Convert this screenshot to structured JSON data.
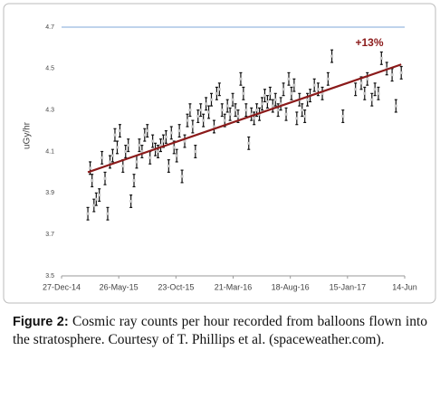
{
  "chart_data": {
    "type": "scatter",
    "ylabel": "uGy/hr",
    "x": [
      "2015-03-06",
      "2015-03-12",
      "2015-03-17",
      "2015-03-22",
      "2015-03-28",
      "2015-04-05",
      "2015-04-12",
      "2015-04-20",
      "2015-04-27",
      "2015-05-03",
      "2015-05-10",
      "2015-05-16",
      "2015-05-22",
      "2015-05-29",
      "2015-06-06",
      "2015-06-13",
      "2015-06-20",
      "2015-06-27",
      "2015-07-05",
      "2015-07-12",
      "2015-07-19",
      "2015-07-26",
      "2015-08-02",
      "2015-08-09",
      "2015-08-16",
      "2015-08-23",
      "2015-08-30",
      "2015-09-06",
      "2015-09-13",
      "2015-09-20",
      "2015-09-27",
      "2015-10-04",
      "2015-10-11",
      "2015-10-18",
      "2015-10-25",
      "2015-11-01",
      "2015-11-08",
      "2015-11-15",
      "2015-11-22",
      "2015-11-29",
      "2015-12-06",
      "2015-12-13",
      "2015-12-20",
      "2015-12-27",
      "2016-01-03",
      "2016-01-10",
      "2016-01-17",
      "2016-01-24",
      "2016-01-31",
      "2016-02-07",
      "2016-02-14",
      "2016-02-21",
      "2016-02-28",
      "2016-03-06",
      "2016-03-13",
      "2016-03-20",
      "2016-03-27",
      "2016-04-03",
      "2016-04-10",
      "2016-04-17",
      "2016-04-24",
      "2016-05-01",
      "2016-05-08",
      "2016-05-15",
      "2016-05-22",
      "2016-05-29",
      "2016-06-05",
      "2016-06-12",
      "2016-06-19",
      "2016-06-26",
      "2016-07-03",
      "2016-07-10",
      "2016-07-17",
      "2016-07-24",
      "2016-07-31",
      "2016-08-07",
      "2016-08-14",
      "2016-08-21",
      "2016-08-28",
      "2016-09-04",
      "2016-09-11",
      "2016-09-18",
      "2016-09-25",
      "2016-10-02",
      "2016-10-09",
      "2016-10-20",
      "2016-10-30",
      "2016-11-10",
      "2016-11-25",
      "2016-12-05",
      "2017-01-03",
      "2017-02-05",
      "2017-02-20",
      "2017-03-01",
      "2017-03-08",
      "2017-03-20",
      "2017-03-28",
      "2017-04-06",
      "2017-04-14",
      "2017-04-28",
      "2017-05-12",
      "2017-05-22",
      "2017-06-05"
    ],
    "values": [
      3.8,
      4.02,
      3.96,
      3.84,
      3.87,
      3.89,
      4.07,
      3.97,
      3.8,
      4.05,
      4.08,
      4.18,
      4.12,
      4.2,
      4.03,
      4.1,
      4.13,
      3.86,
      3.96,
      4.05,
      4.13,
      4.1,
      4.18,
      4.2,
      4.07,
      4.15,
      4.11,
      4.1,
      4.13,
      4.15,
      4.17,
      4.03,
      4.19,
      4.12,
      4.08,
      4.2,
      3.98,
      4.15,
      4.25,
      4.3,
      4.22,
      4.1,
      4.27,
      4.3,
      4.25,
      4.33,
      4.29,
      4.35,
      4.22,
      4.38,
      4.4,
      4.3,
      4.25,
      4.32,
      4.28,
      4.35,
      4.3,
      4.27,
      4.45,
      4.38,
      4.3,
      4.14,
      4.28,
      4.26,
      4.3,
      4.28,
      4.33,
      4.37,
      4.34,
      4.38,
      4.32,
      4.35,
      4.3,
      4.33,
      4.4,
      4.28,
      4.45,
      4.38,
      4.42,
      4.26,
      4.35,
      4.3,
      4.27,
      4.35,
      4.37,
      4.42,
      4.4,
      4.38,
      4.45,
      4.56,
      4.27,
      4.4,
      4.43,
      4.38,
      4.45,
      4.35,
      4.4,
      4.38,
      4.55,
      4.5,
      4.47,
      4.32,
      4.48
    ],
    "error": 0.03,
    "marker_color": "#c8c8c8",
    "trend": {
      "x": [
        "2015-03-06",
        "2017-06-05"
      ],
      "values": [
        4.0,
        4.52
      ],
      "color": "#8b1a1a",
      "label": "+13%"
    },
    "xlim": [
      "2014-12-27",
      "2017-06-14"
    ],
    "xticks": [
      {
        "value": "2014-12-27",
        "label": "27-Dec-14"
      },
      {
        "value": "2015-05-26",
        "label": "26-May-15"
      },
      {
        "value": "2015-10-23",
        "label": "23-Oct-15"
      },
      {
        "value": "2016-03-21",
        "label": "21-Mar-16"
      },
      {
        "value": "2016-08-18",
        "label": "18-Aug-16"
      },
      {
        "value": "2017-01-15",
        "label": "15-Jan-17"
      },
      {
        "value": "2017-06-14",
        "label": "14-Jun"
      }
    ],
    "ylim": [
      3.5,
      4.7
    ],
    "yticks": [
      3.5,
      3.7,
      3.9,
      4.1,
      4.3,
      4.5,
      4.7
    ]
  },
  "caption": {
    "label": "Figure 2:",
    "text": "Cosmic ray counts per hour recorded from balloons flown into the stratosphere. Courtesy of T. Phillips et al. (spaceweather.com)."
  }
}
